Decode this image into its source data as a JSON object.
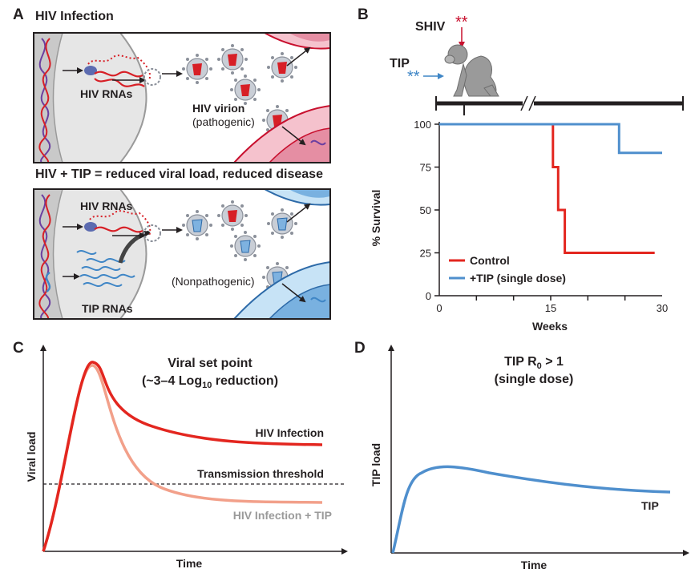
{
  "panel_labels": {
    "a": "A",
    "b": "B",
    "c": "C",
    "d": "D"
  },
  "panel_a": {
    "top": {
      "title": "HIV Infection",
      "rna_label": "HIV RNAs",
      "virion_label": "HIV virion",
      "virion_sublabel": "(pathogenic)"
    },
    "bottom": {
      "title": "HIV + TIP = reduced viral load, reduced disease",
      "rna_label": "HIV RNAs",
      "tip_rna_label": "TIP RNAs",
      "virion_sublabel": "(Nonpathogenic)"
    },
    "colors": {
      "hiv": "#d71f26",
      "tip": "#3f86c6",
      "cell": "#e3e3e3",
      "dna": "#6b3fa0"
    }
  },
  "panel_b": {
    "shiv_label": "SHIV",
    "tip_label": "TIP",
    "asterisks": "**"
  },
  "panel_c": {
    "title_line1": "Viral set point",
    "title_prefix": "(~3–4 Log",
    "title_sub": "10",
    "title_suffix": " reduction)",
    "ylabel": "Viral load",
    "xlabel": "Time",
    "series1_label": "HIV Infection",
    "series2_label": "HIV Infection + TIP",
    "threshold_label": "Transmission threshold"
  },
  "panel_d": {
    "title_prefix": "TIP R",
    "title_sub": "0",
    "title_suffix": " > 1",
    "title_line2": "(single dose)",
    "ylabel": "TIP load",
    "xlabel": "Time",
    "series_label": "TIP"
  },
  "chart_data": [
    {
      "type": "line",
      "chart_type_detail": "step (Kaplan-Meier survival)",
      "xlabel": "Weeks",
      "ylabel": "% Survival",
      "xlim": [
        0,
        30
      ],
      "ylim": [
        0,
        100
      ],
      "x_ticks": [
        0,
        15,
        30
      ],
      "y_ticks": [
        0,
        25,
        50,
        75,
        100
      ],
      "legend_position": "bottom-right",
      "series": [
        {
          "name": "Control",
          "color": "#e3261f",
          "x": [
            0,
            15.3,
            15.3,
            16,
            16,
            16.9,
            16.9,
            29
          ],
          "y": [
            100,
            100,
            75,
            75,
            50,
            50,
            25,
            25
          ]
        },
        {
          "name": "+TIP (single dose)",
          "color": "#4f8fcd",
          "x": [
            0,
            24.2,
            24.2,
            30
          ],
          "y": [
            100,
            100,
            83.3,
            83.3
          ]
        }
      ]
    },
    {
      "type": "line",
      "title": "Viral set point (~3–4 Log10 reduction)",
      "xlabel": "Time",
      "ylabel": "Viral load",
      "schematic": true,
      "series": [
        {
          "name": "HIV Infection",
          "color": "#e3261f"
        },
        {
          "name": "HIV Infection + TIP",
          "color": "#f2a08a"
        },
        {
          "name": "Transmission threshold",
          "style": "dashed",
          "color": "#231f20"
        }
      ]
    },
    {
      "type": "line",
      "title": "TIP R0 > 1 (single dose)",
      "xlabel": "Time",
      "ylabel": "TIP load",
      "schematic": true,
      "series": [
        {
          "name": "TIP",
          "color": "#4f8fcd"
        }
      ]
    }
  ]
}
